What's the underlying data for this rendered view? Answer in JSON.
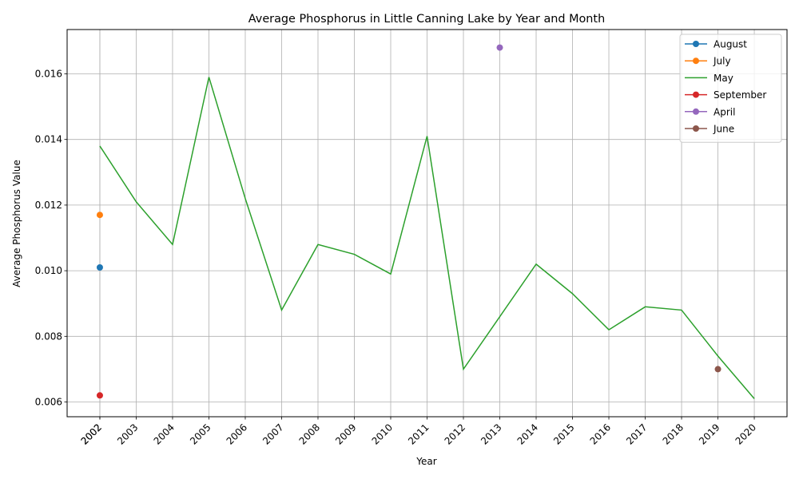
{
  "chart_data": {
    "type": "line",
    "title": "Average Phosphorus in Little Canning Lake by Year and Month",
    "xlabel": "Year",
    "ylabel": "Average Phosphorus Value",
    "x_ticks": [
      "2002",
      "2002",
      "2003",
      "2004",
      "2005",
      "2006",
      "2007",
      "2008",
      "2009",
      "2010",
      "2011",
      "2012",
      "2013",
      "2014",
      "2015",
      "2016",
      "2017",
      "2018",
      "2019",
      "2020"
    ],
    "y_ticks": [
      "0.006",
      "0.008",
      "0.010",
      "0.012",
      "0.014",
      "0.016"
    ],
    "xlim": [
      2001.1,
      2020.9
    ],
    "ylim": [
      0.00555,
      0.01735
    ],
    "grid": true,
    "legend_position": "top-right",
    "series": [
      {
        "name": "August",
        "color": "#1f77b4",
        "marker": true,
        "line": true,
        "points": [
          [
            2002,
            0.0101
          ]
        ]
      },
      {
        "name": "July",
        "color": "#ff7f0e",
        "marker": true,
        "line": true,
        "points": [
          [
            2002,
            0.0117
          ]
        ]
      },
      {
        "name": "May",
        "color": "#2ca02c",
        "marker": false,
        "line": true,
        "points": [
          [
            2002,
            0.0138
          ],
          [
            2003,
            0.0121
          ],
          [
            2004,
            0.0108
          ],
          [
            2005,
            0.0159
          ],
          [
            2006,
            0.0122
          ],
          [
            2007,
            0.0088
          ],
          [
            2008,
            0.0108
          ],
          [
            2009,
            0.0105
          ],
          [
            2010,
            0.0099
          ],
          [
            2011,
            0.0141
          ],
          [
            2012,
            0.007
          ],
          [
            2013,
            0.0086
          ],
          [
            2014,
            0.0102
          ],
          [
            2015,
            0.0093
          ],
          [
            2016,
            0.0082
          ],
          [
            2017,
            0.0089
          ],
          [
            2018,
            0.0088
          ],
          [
            2019,
            0.0074
          ],
          [
            2020,
            0.0061
          ]
        ]
      },
      {
        "name": "September",
        "color": "#d62728",
        "marker": true,
        "line": true,
        "points": [
          [
            2002,
            0.0062
          ]
        ]
      },
      {
        "name": "April",
        "color": "#9467bd",
        "marker": true,
        "line": true,
        "points": [
          [
            2013,
            0.0168
          ]
        ]
      },
      {
        "name": "June",
        "color": "#8c564b",
        "marker": true,
        "line": true,
        "points": [
          [
            2019,
            0.007
          ]
        ]
      }
    ]
  }
}
